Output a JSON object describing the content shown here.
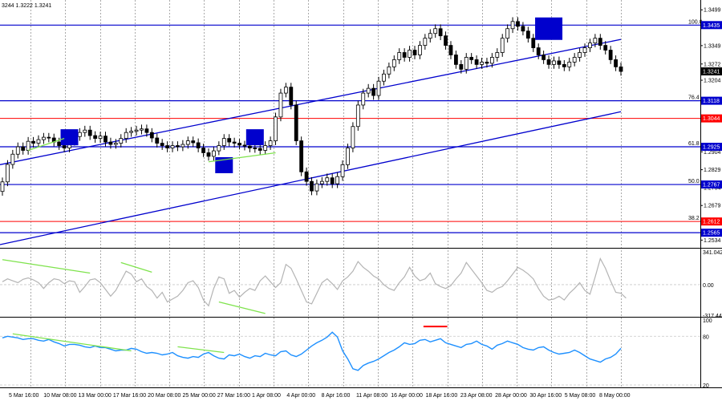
{
  "header_text": "3244 1.3222 1.3241",
  "chart_data": [
    {
      "type": "candlestick",
      "ylim": [
        1.2505,
        1.352
      ],
      "price_ticks": [
        "1.3499",
        "1.3349",
        "1.3272",
        "1.3204",
        "1.2904",
        "1.2829",
        "1.2754",
        "1.2679",
        "1.2534"
      ],
      "x_labels": [
        "5 Mar 16:00",
        "10 Mar 08:00",
        "13 Mar 00:00",
        "17 Mar 16:00",
        "20 Mar 08:00",
        "25 Mar 00:00",
        "27 Mar 16:00",
        "1 Apr 08:00",
        "4 Apr 00:00",
        "8 Apr 16:00",
        "11 Apr 08:00",
        "16 Apr 00:00",
        "18 Apr 16:00",
        "23 Apr 08:00",
        "28 Apr 00:00",
        "30 Apr 16:00",
        "5 May 08:00",
        "8 May 00:00"
      ],
      "close": [
        1.2778,
        1.2851,
        1.2894,
        1.2925,
        1.291,
        1.2948,
        1.294,
        1.2955,
        1.2965,
        1.2962,
        1.2945,
        1.293,
        1.292,
        1.2948,
        1.2968,
        1.2985,
        1.2995,
        1.2972,
        1.296,
        1.297,
        1.2945,
        1.2935,
        1.294,
        1.296,
        1.2985,
        1.299,
        1.2995,
        1.3,
        1.2985,
        1.2962,
        1.294,
        1.293,
        1.292,
        1.293,
        1.2925,
        1.2935,
        1.295,
        1.2942,
        1.292,
        1.29,
        1.2885,
        1.2908,
        1.293,
        1.296,
        1.2945,
        1.294,
        1.2932,
        1.2928,
        1.292,
        1.2918,
        1.291,
        1.293,
        1.295,
        1.305,
        1.315,
        1.3175,
        1.31,
        1.295,
        1.282,
        1.278,
        1.274,
        1.277,
        1.278,
        1.2795,
        1.277,
        1.28,
        1.285,
        1.292,
        1.301,
        1.31,
        1.315,
        1.317,
        1.314,
        1.32,
        1.323,
        1.326,
        1.329,
        1.332,
        1.33,
        1.333,
        1.331,
        1.335,
        1.338,
        1.34,
        1.342,
        1.339,
        1.335,
        1.331,
        1.327,
        1.325,
        1.33,
        1.329,
        1.327,
        1.328,
        1.3275,
        1.33,
        1.332,
        1.338,
        1.342,
        1.345,
        1.343,
        1.341,
        1.338,
        1.334,
        1.331,
        1.329,
        1.327,
        1.3285,
        1.327,
        1.326,
        1.328,
        1.33,
        1.332,
        1.334,
        1.336,
        1.338,
        1.335,
        1.333,
        1.329,
        1.326,
        1.3241
      ],
      "lines": {
        "h_blue": [
          1.3435,
          1.3118,
          1.2925,
          1.2767,
          1.2565
        ],
        "h_red": [
          1.3044,
          1.2612
        ]
      },
      "channels": [
        {
          "from": [
            0,
            1.285
          ],
          "to": [
            120,
            1.3375
          ]
        },
        {
          "from": [
            0,
            1.2515
          ],
          "to": [
            120,
            1.3072
          ]
        }
      ],
      "fib_labels": [
        "100.0",
        "76.4",
        "61.8",
        "50.0",
        "38.2"
      ],
      "price_tags": [
        {
          "text": "1.3435",
          "value": 1.3435,
          "bg": "#0000cd"
        },
        {
          "text": "1.3241",
          "value": 1.3241,
          "bg": "#000000"
        },
        {
          "text": "1.3118",
          "value": 1.3118,
          "bg": "#0000cd"
        },
        {
          "text": "1.3044",
          "value": 1.3044,
          "bg": "#ff0000"
        },
        {
          "text": "1.2925",
          "value": 1.2925,
          "bg": "#0000cd"
        },
        {
          "text": "1.2767",
          "value": 1.2767,
          "bg": "#0000cd"
        },
        {
          "text": "1.2612",
          "value": 1.2612,
          "bg": "#ff0000"
        },
        {
          "text": "1.2565",
          "value": 1.2565,
          "bg": "#0000cd"
        }
      ],
      "boxes": [
        {
          "i": 13,
          "value": 1.2965
        },
        {
          "i": 43,
          "value": 1.2848
        },
        {
          "i": 49,
          "value": 1.2965
        },
        {
          "i": 106,
          "value": 1.342
        }
      ],
      "divergences": [
        {
          "from": [
            5,
            1.291
          ],
          "to": [
            12,
            1.296
          ]
        },
        {
          "from": [
            40,
            1.2862
          ],
          "to": [
            53,
            1.29
          ]
        }
      ]
    },
    {
      "type": "line",
      "name": "CCI",
      "ylim": [
        -317.444,
        341.0423
      ],
      "ticks": [
        "341.0423",
        "0.00",
        "-317.444"
      ],
      "values": [
        30,
        60,
        40,
        20,
        55,
        70,
        50,
        20,
        -40,
        20,
        60,
        50,
        10,
        40,
        30,
        -80,
        -20,
        50,
        60,
        20,
        -50,
        -120,
        -60,
        40,
        140,
        110,
        30,
        60,
        -20,
        -60,
        -140,
        -80,
        -180,
        -150,
        -120,
        -60,
        20,
        40,
        -30,
        -160,
        -220,
        -40,
        80,
        60,
        -90,
        -60,
        -130,
        -80,
        -40,
        -60,
        40,
        90,
        30,
        -30,
        20,
        210,
        170,
        60,
        -60,
        -180,
        -200,
        -90,
        20,
        60,
        10,
        -50,
        40,
        80,
        140,
        240,
        180,
        140,
        90,
        60,
        0,
        -40,
        -60,
        20,
        80,
        180,
        90,
        40,
        60,
        120,
        10,
        -20,
        -40,
        -10,
        60,
        120,
        230,
        160,
        90,
        20,
        -60,
        -80,
        -40,
        -20,
        40,
        110,
        180,
        150,
        110,
        60,
        -40,
        -120,
        -160,
        -150,
        -120,
        -160,
        -90,
        -40,
        20,
        -60,
        -100,
        80,
        270,
        170,
        40,
        -80,
        -90,
        -140
      ],
      "divergences": [
        {
          "from": [
            0,
            260
          ],
          "to": [
            17,
            120
          ]
        },
        {
          "from": [
            23,
            230
          ],
          "to": [
            29,
            130
          ]
        },
        {
          "from": [
            42,
            -180
          ],
          "to": [
            51,
            -300
          ]
        }
      ]
    },
    {
      "type": "line",
      "name": "RSI",
      "ylim": [
        20,
        100
      ],
      "ticks": [
        "100",
        "80",
        "20"
      ],
      "values": [
        78,
        80,
        79,
        78,
        76,
        77,
        77,
        75,
        74,
        76,
        73,
        71,
        68,
        70,
        70,
        69,
        67,
        66,
        68,
        66,
        66,
        64,
        62,
        63,
        63,
        65,
        64,
        61,
        59,
        60,
        59,
        57,
        58,
        60,
        56,
        54,
        53,
        55,
        54,
        58,
        60,
        56,
        53,
        52,
        57,
        56,
        58,
        55,
        53,
        56,
        55,
        59,
        57,
        56,
        61,
        62,
        57,
        55,
        58,
        63,
        68,
        72,
        75,
        79,
        85,
        79,
        62,
        52,
        40,
        38,
        44,
        47,
        49,
        52,
        56,
        60,
        63,
        67,
        72,
        70,
        71,
        75,
        76,
        73,
        75,
        77,
        72,
        70,
        68,
        66,
        70,
        71,
        74,
        70,
        68,
        64,
        69,
        71,
        74,
        72,
        70,
        66,
        64,
        63,
        66,
        67,
        63,
        60,
        58,
        59,
        60,
        63,
        60,
        56,
        52,
        50,
        48,
        52,
        54,
        58,
        65
      ],
      "divergences": [
        {
          "from": [
            2,
            83
          ],
          "to": [
            25,
            62
          ]
        },
        {
          "from": [
            34,
            67
          ],
          "to": [
            43,
            60
          ]
        }
      ],
      "marker": {
        "from": [
          82,
          92
        ],
        "to": [
          86,
          92
        ]
      }
    }
  ],
  "colors": {
    "level_blue": "#0000cd",
    "level_red": "#ff0000",
    "divergence": "#7fe34d",
    "rsi_line": "#1e90ff",
    "cci_line": "#b4b4b4",
    "grid": "#c8c8c8"
  }
}
